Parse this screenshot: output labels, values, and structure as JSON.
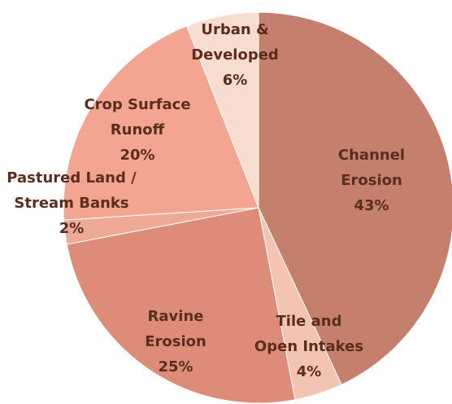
{
  "chart_data": {
    "type": "pie",
    "title": "",
    "start_angle_deg": 0,
    "direction": "clockwise",
    "slices": [
      {
        "lines": [
          "Channel",
          "Erosion",
          "43%"
        ],
        "value": 43,
        "color": "#c4806c"
      },
      {
        "lines": [
          "Tile and",
          "Open Intakes",
          "4%"
        ],
        "value": 4,
        "color": "#f2c4b1"
      },
      {
        "lines": [
          "Ravine",
          "Erosion",
          "25%"
        ],
        "value": 25,
        "color": "#dd8d77"
      },
      {
        "lines": [
          "Pastured Land /",
          "Stream Banks",
          "2%"
        ],
        "value": 2,
        "color": "#efaa97"
      },
      {
        "lines": [
          "Crop Surface",
          "Runoff",
          "20%"
        ],
        "value": 20,
        "color": "#f3a591"
      },
      {
        "lines": [
          "Urban &",
          "Developed",
          "6%"
        ],
        "value": 6,
        "color": "#f7dcd0"
      }
    ]
  }
}
